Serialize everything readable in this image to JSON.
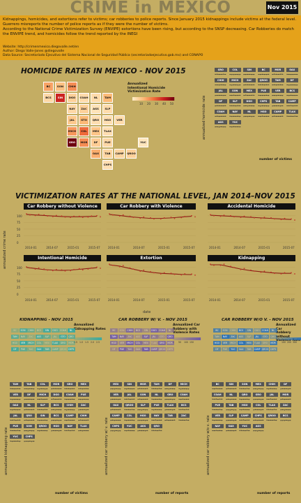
{
  "header": {
    "title": "CRIME in MEXICO",
    "date_badge": "Nov 2015"
  },
  "intro": {
    "text": "Kidnappings, homicides, and extortions refer to victims; car robberies to police reports. Since January 2015 kidnappings include victims at the federal level. Guerrero misreports the number of police reports as if they were the number of victims.",
    "text2": "According to the National Crime Victimization Survey (ENVIPE) extortions have been rising, but according to the SNSP decreasing. Car Robberies do match the ENVIPE trend, and homicides follow the trend reported by the INEGI",
    "website": "Website: http://crimenmexico.diegovalle.net/en",
    "author": "Author: Diego Valle-Jones @diegovalle",
    "source": "Data Source: Secretariado Ejecutivo del Sistema Nacional de Seguridad Pública (secretariadoejecutivo.gob.mx) and CONAPO"
  },
  "homicide_map": {
    "title": "HOMICIDE RATES IN MEXICO - NOV 2015",
    "legend_title": "Annualized\nIntentional Homicide\nVictimization Rate",
    "legend_ticks": [
      "10",
      "20",
      "30",
      "40",
      "50"
    ],
    "states": [
      {
        "name": "BC",
        "row": 0,
        "col": 0,
        "rate": 18
      },
      {
        "name": "SON",
        "row": 0,
        "col": 1,
        "rate": 12
      },
      {
        "name": "CHIH",
        "row": 0,
        "col": 2,
        "rate": 22
      },
      {
        "name": "BCS",
        "row": 1,
        "col": 0,
        "rate": 6
      },
      {
        "name": "SIN",
        "row": 1,
        "col": 1,
        "rate": 40
      },
      {
        "name": "DGO",
        "row": 1,
        "col": 2,
        "rate": 8
      },
      {
        "name": "COAH",
        "row": 1,
        "col": 3,
        "rate": 5
      },
      {
        "name": "NL",
        "row": 1,
        "col": 4,
        "rate": 5
      },
      {
        "name": "TAM",
        "row": 1,
        "col": 5,
        "rate": 14
      },
      {
        "name": "NAY",
        "row": 2,
        "col": 2,
        "rate": 6
      },
      {
        "name": "ZAC",
        "row": 2,
        "col": 3,
        "rate": 8
      },
      {
        "name": "AGS",
        "row": 2,
        "col": 4,
        "rate": 3
      },
      {
        "name": "SLP",
        "row": 2,
        "col": 5,
        "rate": 5
      },
      {
        "name": "JAL",
        "row": 3,
        "col": 2,
        "rate": 10
      },
      {
        "name": "GTO",
        "row": 3,
        "col": 3,
        "rate": 14
      },
      {
        "name": "QRO",
        "row": 3,
        "col": 4,
        "rate": 4
      },
      {
        "name": "HGO",
        "row": 3,
        "col": 5,
        "rate": 4
      },
      {
        "name": "VER",
        "row": 3,
        "col": 6,
        "rate": 5
      },
      {
        "name": "MICH",
        "row": 4,
        "col": 2,
        "rate": 20
      },
      {
        "name": "COL",
        "row": 4,
        "col": 3,
        "rate": 28
      },
      {
        "name": "MEX",
        "row": 4,
        "col": 4,
        "rate": 11
      },
      {
        "name": "TLAX",
        "row": 4,
        "col": 5,
        "rate": 4
      },
      {
        "name": "GRO",
        "row": 5,
        "col": 2,
        "rate": 55
      },
      {
        "name": "MOR",
        "row": 5,
        "col": 3,
        "rate": 22
      },
      {
        "name": "DF",
        "row": 5,
        "col": 4,
        "rate": 9
      },
      {
        "name": "PUE",
        "row": 5,
        "col": 5,
        "rate": 6
      },
      {
        "name": "YUC",
        "row": 5,
        "col": 8,
        "rate": 2
      },
      {
        "name": "OAX",
        "row": 6,
        "col": 4,
        "rate": 16
      },
      {
        "name": "TAB",
        "row": 6,
        "col": 5,
        "rate": 7
      },
      {
        "name": "CAMP",
        "row": 6,
        "col": 6,
        "rate": 7
      },
      {
        "name": "QROO",
        "row": 6,
        "col": 7,
        "rate": 8
      },
      {
        "name": "CHPS",
        "row": 7,
        "col": 5,
        "rate": 4
      }
    ]
  },
  "homicide_smallmult": {
    "ylabel": "annualized homicide rate",
    "legend_title": "number of victims",
    "states": [
      "GRO",
      "COL",
      "SIN",
      "BC",
      "MOR",
      "OAX",
      "CHIH",
      "MICH",
      "ZAC",
      "QROO",
      "TAM",
      "DF",
      "JAL",
      "SON",
      "MEX",
      "PUE",
      "VER",
      "BCS",
      "DF",
      "SLP",
      "DGO",
      "CHPS",
      "TAB",
      "CAMP",
      "COAH",
      "NAY",
      "NL",
      "HGO",
      "CAMP",
      "TLAX",
      "AGS",
      "YUC"
    ]
  },
  "national": {
    "title": "VICTIMIZATION RATES AT THE NATIONAL LEVEL, JAN 2014–NOV 2015",
    "ylabel": "annualized crime rate",
    "xlabel": "date",
    "x_ticks": [
      "2014-01",
      "2014-07",
      "2015-01",
      "2015-07"
    ],
    "y_ticks": [
      "0",
      "25",
      "50",
      "75",
      "100"
    ]
  },
  "chart_data": [
    {
      "type": "line",
      "title": "Car Robbery without Violence",
      "x": [
        "2014-01",
        "2014-04",
        "2014-07",
        "2014-10",
        "2015-01",
        "2015-04",
        "2015-07",
        "2015-10",
        "2015-11"
      ],
      "values": [
        105,
        103,
        101,
        99,
        97,
        96,
        96,
        97,
        98
      ],
      "ylim": [
        0,
        110
      ]
    },
    {
      "type": "line",
      "title": "Car Robbery with Violence",
      "x": [
        "2014-01",
        "2014-04",
        "2014-07",
        "2014-10",
        "2015-01",
        "2015-04",
        "2015-07",
        "2015-10",
        "2015-11"
      ],
      "values": [
        105,
        101,
        96,
        93,
        90,
        90,
        92,
        95,
        98
      ],
      "ylim": [
        0,
        110
      ]
    },
    {
      "type": "line",
      "title": "Accidental Homicide",
      "x": [
        "2014-01",
        "2014-04",
        "2014-07",
        "2014-10",
        "2015-01",
        "2015-04",
        "2015-07",
        "2015-10",
        "2015-11"
      ],
      "values": [
        102,
        100,
        98,
        96,
        94,
        92,
        90,
        88,
        86
      ],
      "ylim": [
        0,
        110
      ]
    },
    {
      "type": "line",
      "title": "Intentional Homicide",
      "x": [
        "2014-01",
        "2014-04",
        "2014-07",
        "2014-10",
        "2015-01",
        "2015-04",
        "2015-07",
        "2015-10",
        "2015-11"
      ],
      "values": [
        100,
        96,
        92,
        90,
        89,
        90,
        93,
        96,
        99
      ],
      "ylim": [
        0,
        110
      ]
    },
    {
      "type": "line",
      "title": "Extortion",
      "x": [
        "2014-01",
        "2014-04",
        "2014-07",
        "2014-10",
        "2015-01",
        "2015-04",
        "2015-07",
        "2015-10",
        "2015-11"
      ],
      "values": [
        115,
        105,
        96,
        88,
        82,
        78,
        76,
        74,
        73
      ],
      "ylim": [
        0,
        120
      ]
    },
    {
      "type": "line",
      "title": "Kidnapping",
      "x": [
        "2014-01",
        "2014-04",
        "2014-07",
        "2014-10",
        "2015-01",
        "2015-04",
        "2015-07",
        "2015-10",
        "2015-11"
      ],
      "values": [
        122,
        112,
        102,
        94,
        88,
        84,
        80,
        78,
        78
      ],
      "ylim": [
        0,
        130
      ]
    }
  ],
  "bottom_maps": [
    {
      "title": "KIDNAPPING - NOV 2015",
      "legend": "Annualized\nKidnapping Rates",
      "ticks": [
        "0.5",
        "1.0",
        "1.5",
        "2.0",
        "2.5"
      ],
      "color": "#3aa9a0"
    },
    {
      "title": "CAR ROBBERY W/ V. - NOV 2015",
      "legend": "Annualized Car\nRobbery with\nViolence Rates",
      "ticks": [
        "0",
        "50",
        "100",
        "150"
      ],
      "color": "#6f5aa6"
    },
    {
      "title": "CAR ROBBERY W/O V. - NOV 2015",
      "legend": "Annualized Car\nRobbery without\nViolence Rate",
      "ticks": [
        "0",
        "100",
        "200",
        "300"
      ],
      "color": "#2a72b8"
    }
  ],
  "bottom_smallmult": [
    {
      "ylabel": "annualized kidnapping rate",
      "legend_title": "number of victims",
      "states": [
        "TAM",
        "TAB",
        "COL",
        "MOR",
        "GRO",
        "MEX",
        "VER",
        "DF",
        "MICH",
        "DGO",
        "COAH",
        "PUE",
        "OAX",
        "NL",
        "SLP",
        "BCS",
        "CHIH",
        "ZAC",
        "JAL",
        "QRO",
        "SIN",
        "BCS",
        "CAMP",
        "CHIH",
        "PUE",
        "SON",
        "QROO",
        "HGO",
        "NAY",
        "TLAX",
        "YUC",
        "CHPS"
      ]
    },
    {
      "ylabel": "annualized car robbery w/ v. rate",
      "legend_title": "number of reports",
      "states": [
        "MEX",
        "SIN",
        "MOR",
        "TAM",
        "DF",
        "MICH",
        "VER",
        "JAL",
        "SON",
        "NL",
        "GRO",
        "COAH",
        "OAX",
        "QROO",
        "SLP",
        "PUE",
        "TLAX",
        "BCS",
        "CAMP",
        "COL",
        "HGO",
        "NAY",
        "TAB",
        "ZAC",
        "CHPS",
        "YUC",
        "AGS",
        "QRO"
      ]
    },
    {
      "ylabel": "annualized car robbery w/o v. rate",
      "legend_title": "number of reports",
      "states": [
        "BC",
        "SIN",
        "SON",
        "MEX",
        "CHIH",
        "DF",
        "COAH",
        "NL",
        "QRO",
        "GRO",
        "JAL",
        "MOR",
        "PUE",
        "TAB",
        "HGO",
        "COL",
        "TLAX",
        "ZAC",
        "VER",
        "SLP",
        "CAMP",
        "CHPS",
        "QROO",
        "BCS",
        "NAY",
        "OAX",
        "YUC",
        "AGS"
      ]
    }
  ]
}
